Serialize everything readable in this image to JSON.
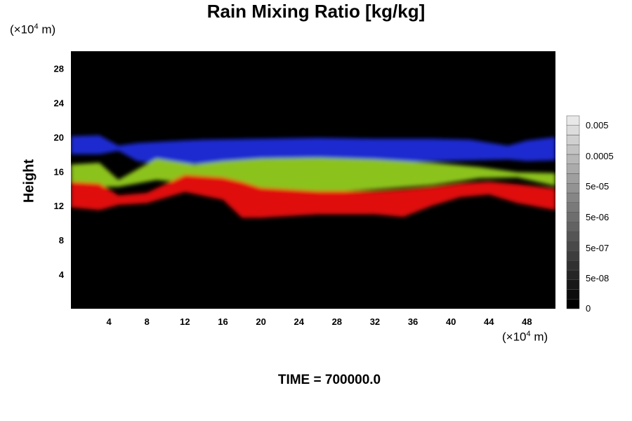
{
  "chart_data": {
    "type": "heatmap",
    "title": "Rain Mixing Ratio [kg/kg]",
    "ylabel": "Height",
    "x_unit": {
      "prefix": "(×10",
      "exp": "4",
      "suffix": " m)"
    },
    "y_unit": {
      "prefix": "(×10",
      "exp": "4",
      "suffix": " m)"
    },
    "xlim": [
      0,
      51
    ],
    "ylim": [
      0,
      30
    ],
    "x_ticks": [
      4,
      8,
      12,
      16,
      20,
      24,
      28,
      32,
      36,
      40,
      44,
      48
    ],
    "y_ticks": [
      4,
      8,
      12,
      16,
      20,
      24,
      28
    ],
    "colorbar": {
      "ticks": [
        "0",
        "5e-08",
        "5e-07",
        "5e-06",
        "5e-05",
        "0.0005",
        "0.005"
      ],
      "levels": 20
    },
    "background_color": "#000000",
    "layer_colors": {
      "top": "#1a2ad0",
      "middle": "#8cc21a",
      "bottom": "#e00c0c"
    },
    "layers": [
      {
        "name": "top",
        "color": "#1a2ad0",
        "bounds": [
          [
            0,
            18.0,
            20.1
          ],
          [
            3,
            18.0,
            20.2
          ],
          [
            5,
            18.4,
            19.0
          ],
          [
            7,
            17.2,
            19.3
          ],
          [
            10,
            16.8,
            19.5
          ],
          [
            14,
            16.9,
            19.7
          ],
          [
            20,
            17.1,
            19.8
          ],
          [
            26,
            17.0,
            19.9
          ],
          [
            32,
            17.0,
            19.8
          ],
          [
            38,
            17.2,
            19.8
          ],
          [
            42,
            17.3,
            19.7
          ],
          [
            46,
            17.4,
            19.0
          ],
          [
            48,
            17.2,
            19.6
          ],
          [
            51,
            17.3,
            20.0
          ]
        ]
      },
      {
        "name": "middle",
        "color": "#8cc21a",
        "bounds": [
          [
            0,
            14.0,
            16.8
          ],
          [
            3,
            14.2,
            17.0
          ],
          [
            5,
            14.2,
            15.0
          ],
          [
            9,
            15.0,
            17.5
          ],
          [
            13,
            14.6,
            16.8
          ],
          [
            16,
            14.5,
            17.2
          ],
          [
            20,
            13.8,
            17.5
          ],
          [
            26,
            13.5,
            17.6
          ],
          [
            32,
            13.9,
            17.4
          ],
          [
            38,
            14.4,
            17.0
          ],
          [
            43,
            15.2,
            16.5
          ],
          [
            47,
            15.3,
            15.9
          ],
          [
            51,
            14.3,
            15.8
          ]
        ]
      },
      {
        "name": "bottom",
        "color": "#e00c0c",
        "bounds": [
          [
            0,
            11.8,
            14.8
          ],
          [
            3,
            11.5,
            14.6
          ],
          [
            5,
            12.1,
            13.2
          ],
          [
            8,
            12.3,
            13.5
          ],
          [
            12,
            13.6,
            15.6
          ],
          [
            16,
            12.7,
            15.3
          ],
          [
            18,
            10.6,
            14.8
          ],
          [
            20,
            10.6,
            14.1
          ],
          [
            26,
            11.0,
            13.7
          ],
          [
            32,
            11.0,
            13.7
          ],
          [
            35,
            10.7,
            13.9
          ],
          [
            38,
            12.0,
            14.2
          ],
          [
            41,
            13.0,
            14.6
          ],
          [
            44,
            13.3,
            14.8
          ],
          [
            47,
            12.3,
            14.5
          ],
          [
            51,
            11.5,
            14.0
          ]
        ]
      }
    ]
  },
  "time_label": "TIME = 700000.0"
}
